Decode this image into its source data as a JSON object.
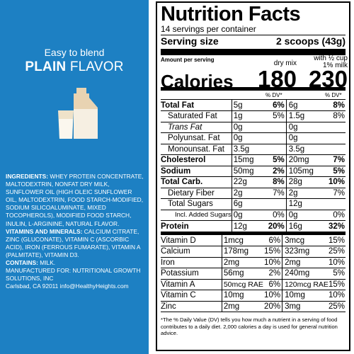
{
  "left": {
    "tagline": "Easy to blend",
    "flavor_bold": "PLAIN",
    "flavor_thin": " FLAVOR",
    "ingredients_label": "INGREDIENTS:",
    "ingredients_text": " WHEY PROTEIN CONCENTRATE, MALTODEXTRIN, NONFAT DRY MILK, SUNFLOWER OIL (HIGH OLEIC SUNFLOWER OIL, MALTODEXTRIN, FOOD STARCH-MODIFIED, SODIUM SILICOALUMINATE, MIXED TOCOPHEROLS), MODIFIED FOOD STARCH, INULIN, L-ARGININE, NATURAL FLAVOR.",
    "vitamins_label": "VITAMINS AND MINERALS:",
    "vitamins_text": " CALCIUM CITRATE, ZINC (GLUCONATE), VITAMIN C (ASCORBIC ACID), IRON (FERROUS FUMARATE), VITAMIN A (PALMITATE), VITAMIN D3.",
    "contains_label": "CONTAINS:",
    "contains_text": " MILK.",
    "manufacturer": "MANUFACTURED FOR: NUTRITIONAL GROWTH SOLUTIONS, INC",
    "address": "Carlsbad, CA 92011 info@HealthyHeights.com",
    "colors": {
      "panel": "#1d80c3",
      "milk": "#f3ead8",
      "jar": "#e8d3b2"
    }
  },
  "nutrition": {
    "title": "Nutrition Facts",
    "servings": "14 servings per container",
    "serving_size_label": "Serving size",
    "serving_size_value": "2 scoops (43g)",
    "amount_per_serving": "Amount per serving",
    "calories_label": "Calories",
    "col1_header": "dry mix",
    "col2_header_line1": "with ½ cup",
    "col2_header_line2": "1% milk",
    "calories_dry": "180",
    "calories_milk": "230",
    "dv_header": "% DV*",
    "macros": [
      {
        "name": "Total Fat",
        "a1": "5g",
        "p1": "6%",
        "a2": "6g",
        "p2": "8%",
        "bold": true
      },
      {
        "name": "Saturated Fat",
        "a1": "1g",
        "p1": "5%",
        "a2": "1.5g",
        "p2": "8%",
        "indent": 1
      },
      {
        "name": "Trans Fat",
        "a1": "0g",
        "p1": "",
        "a2": "0g",
        "p2": "",
        "indent": 1,
        "italic": true
      },
      {
        "name": "Polyunsat. Fat",
        "a1": "0g",
        "p1": "",
        "a2": "0g",
        "p2": "",
        "indent": 1
      },
      {
        "name": "Monounsat. Fat",
        "a1": "3.5g",
        "p1": "",
        "a2": "3.5g",
        "p2": "",
        "indent": 1
      },
      {
        "name": "Cholesterol",
        "a1": "15mg",
        "p1": "5%",
        "a2": "20mg",
        "p2": "7%",
        "bold": true
      },
      {
        "name": "Sodium",
        "a1": "50mg",
        "p1": "2%",
        "a2": "105mg",
        "p2": "5%",
        "bold": true
      },
      {
        "name": "Total Carb.",
        "a1": "22g",
        "p1": "8%",
        "a2": "28g",
        "p2": "10%",
        "bold": true
      },
      {
        "name": "Dietary Fiber",
        "a1": "2g",
        "p1": "7%",
        "a2": "2g",
        "p2": "7%",
        "indent": 1
      },
      {
        "name": "Total Sugars",
        "a1": "6g",
        "p1": "",
        "a2": "12g",
        "p2": "",
        "indent": 1
      },
      {
        "name": "Incl. Added Sugars",
        "a1": "0g",
        "p1": "0%",
        "a2": "0g",
        "p2": "0%",
        "indent": 2
      },
      {
        "name": "Protein",
        "a1": "12g",
        "p1": "20%",
        "a2": "16g",
        "p2": "32%",
        "bold": true,
        "protein": true
      }
    ],
    "vitamins": [
      {
        "name": "Vitamin D",
        "a1": "1mcg",
        "p1": "6%",
        "a2": "3mcg",
        "p2": "15%"
      },
      {
        "name": "Calcium",
        "a1": "178mg",
        "p1": "15%",
        "a2": "323mg",
        "p2": "25%"
      },
      {
        "name": "Iron",
        "a1": "2mg",
        "p1": "10%",
        "a2": "2mg",
        "p2": "10%"
      },
      {
        "name": "Potassium",
        "a1": "56mg",
        "p1": "2%",
        "a2": "240mg",
        "p2": "5%"
      },
      {
        "name": "Vitamin A",
        "a1": "50mcg RAE",
        "p1": "6%",
        "a2": "120mcg RAE",
        "p2": "15%"
      },
      {
        "name": "Vitamin C",
        "a1": "10mg",
        "p1": "10%",
        "a2": "10mg",
        "p2": "10%"
      },
      {
        "name": "Zinc",
        "a1": "2mg",
        "p1": "20%",
        "a2": "3mg",
        "p2": "25%"
      }
    ],
    "footnote": "*The % Daily Value (DV) tells you how much a nutrient in a serving of food contributes to a daily diet. 2,000 calories a day is used for general nutrition advice."
  }
}
